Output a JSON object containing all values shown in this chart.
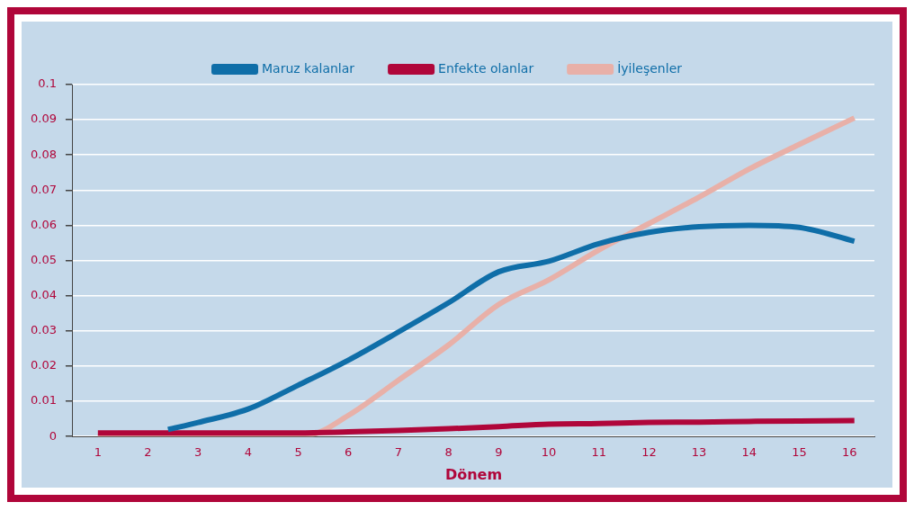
{
  "chart_data": {
    "type": "line",
    "xlabel": "Dönem",
    "xlim": [
      0.5,
      16.5
    ],
    "xticks": [
      1,
      2,
      3,
      4,
      5,
      6,
      7,
      8,
      9,
      10,
      11,
      12,
      13,
      14,
      15,
      16
    ],
    "ylim": [
      0,
      0.1
    ],
    "yticks": [
      0,
      0.01,
      0.02,
      0.03,
      0.04,
      0.05,
      0.06,
      0.07,
      0.08,
      0.09,
      0.1
    ],
    "grid": "y",
    "legend": "top",
    "marker": "none",
    "line_style": "solid",
    "series": [
      {
        "name": "Maruz kalanlar",
        "color": "#0f6ea8",
        "x": [
          2.4,
          3,
          4,
          5,
          6,
          7,
          8,
          9,
          10,
          11,
          12,
          13,
          14,
          15,
          16.1
        ],
        "values": [
          0.002,
          0.004,
          0.0078,
          0.0146,
          0.0217,
          0.0297,
          0.038,
          0.0468,
          0.0498,
          0.0548,
          0.058,
          0.0596,
          0.06,
          0.0594,
          0.0555
        ]
      },
      {
        "name": "Enfekte olanlar",
        "color": "#b0063a",
        "x": [
          1,
          2,
          3,
          4,
          5,
          6,
          7,
          8,
          9,
          10,
          11,
          12,
          13,
          14,
          15,
          16.1
        ],
        "values": [
          0.001,
          0.001,
          0.001,
          0.001,
          0.001,
          0.0013,
          0.0017,
          0.0022,
          0.0028,
          0.0035,
          0.0037,
          0.004,
          0.0041,
          0.0043,
          0.0044,
          0.0045
        ]
      },
      {
        "name": "İyileşenler",
        "color": "#e8b0a8",
        "x": [
          1,
          2,
          3,
          4,
          5.2,
          6,
          7,
          8,
          9,
          10,
          11,
          12,
          13,
          14,
          15,
          16.1
        ],
        "values": [
          0,
          0,
          0,
          0,
          0.0004,
          0.006,
          0.016,
          0.026,
          0.0375,
          0.0445,
          0.053,
          0.0605,
          0.068,
          0.076,
          0.083,
          0.0905
        ]
      }
    ]
  }
}
